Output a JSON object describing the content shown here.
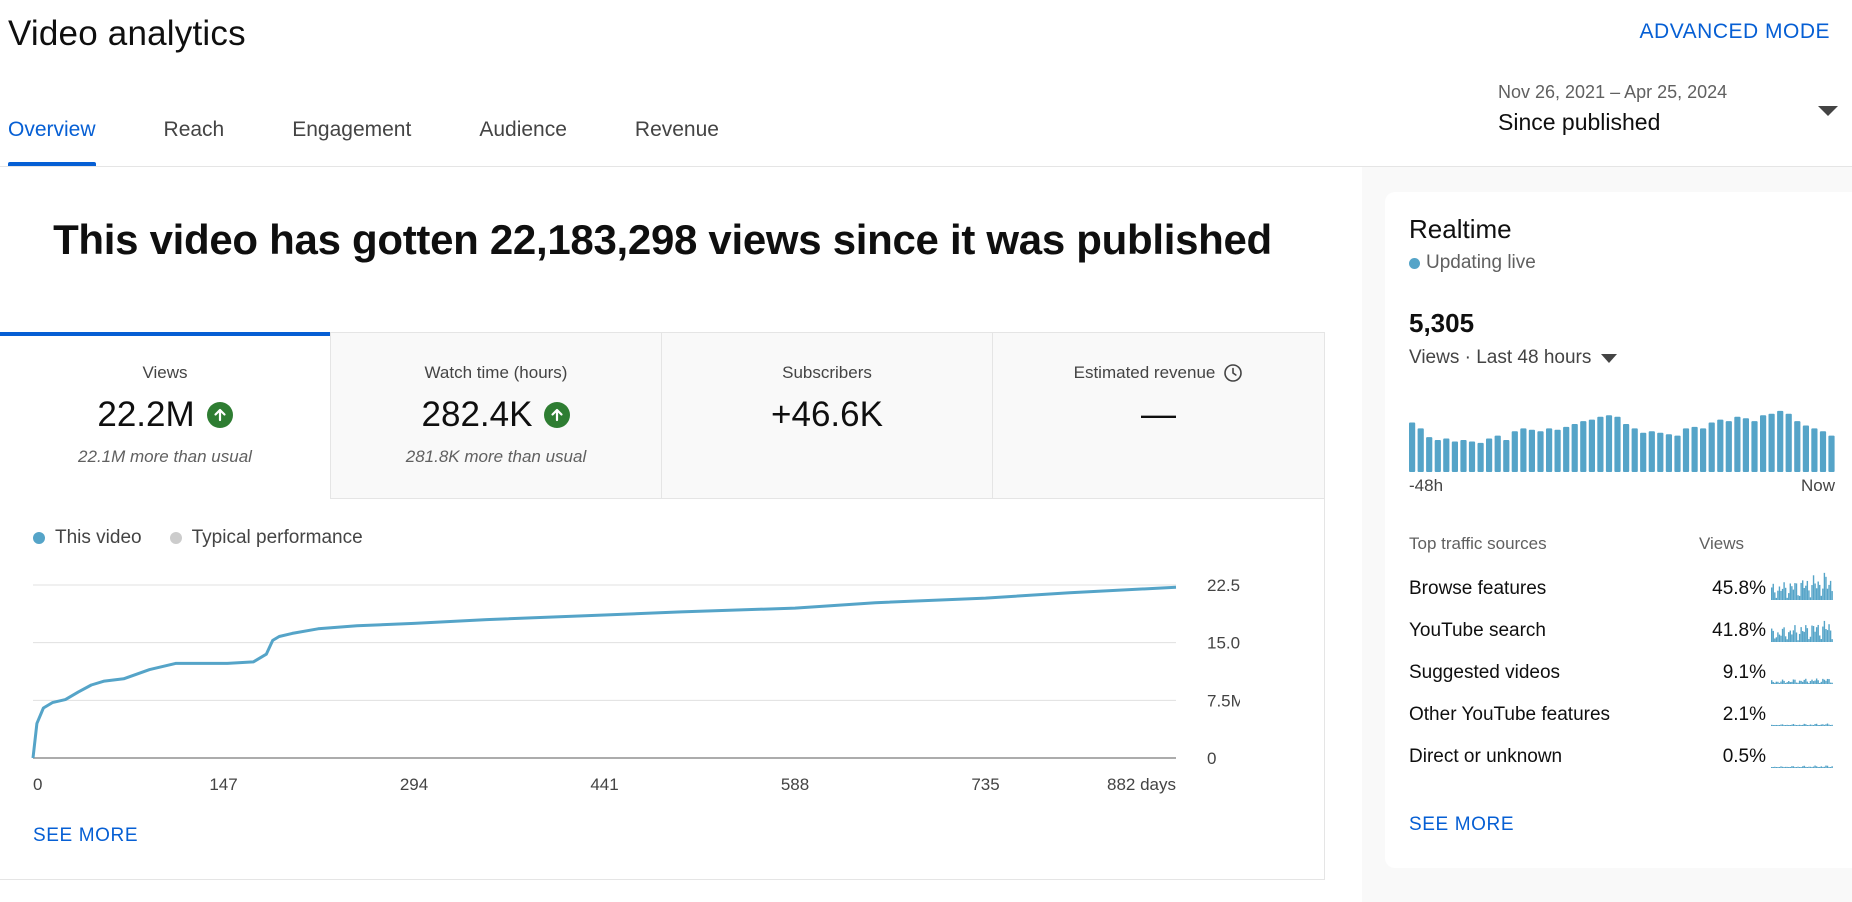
{
  "header": {
    "title": "Video analytics",
    "advanced_mode": "ADVANCED MODE"
  },
  "tabs": [
    {
      "label": "Overview",
      "active": true
    },
    {
      "label": "Reach",
      "active": false
    },
    {
      "label": "Engagement",
      "active": false
    },
    {
      "label": "Audience",
      "active": false
    },
    {
      "label": "Revenue",
      "active": false
    }
  ],
  "date_range": {
    "range": "Nov 26, 2021 – Apr 25, 2024",
    "label": "Since published"
  },
  "headline": "This video has gotten 22,183,298 views since it was published",
  "metrics": [
    {
      "label": "Views",
      "value": "22.2M",
      "sub": "22.1M more than usual",
      "trend": "up"
    },
    {
      "label": "Watch time (hours)",
      "value": "282.4K",
      "sub": "281.8K more than usual",
      "trend": "up"
    },
    {
      "label": "Subscribers",
      "value": "+46.6K",
      "sub": ""
    },
    {
      "label": "Estimated revenue",
      "value": "—",
      "sub": "",
      "icon": "clock-icon"
    }
  ],
  "legend": {
    "this_video": "This video",
    "typical": "Typical performance"
  },
  "colors": {
    "accent": "#065fd4",
    "series": "#55a4c8",
    "typical": "#cccccc",
    "up": "#2e7d32"
  },
  "chart_data": {
    "type": "line",
    "series": [
      {
        "name": "This video",
        "x": [
          0,
          3,
          8,
          15,
          25,
          35,
          45,
          55,
          70,
          90,
          110,
          130,
          150,
          170,
          180,
          185,
          190,
          200,
          220,
          250,
          294,
          350,
          441,
          500,
          588,
          650,
          735,
          800,
          882
        ],
        "y": [
          0,
          4.5,
          6.5,
          7.2,
          7.6,
          8.6,
          9.5,
          10.0,
          10.3,
          11.5,
          12.3,
          12.3,
          12.3,
          12.5,
          13.5,
          15.3,
          15.8,
          16.2,
          16.8,
          17.2,
          17.5,
          18.0,
          18.6,
          19.0,
          19.5,
          20.2,
          20.8,
          21.5,
          22.2
        ]
      }
    ],
    "x_ticks": [
      "0",
      "147",
      "294",
      "441",
      "588",
      "735",
      "882 days"
    ],
    "y_ticks": [
      "0",
      "7.5M",
      "15.0M",
      "22.5M"
    ],
    "xlim": [
      0,
      882
    ],
    "ylim": [
      0,
      22.5
    ],
    "grid": true
  },
  "main_see_more": "SEE MORE",
  "realtime": {
    "title": "Realtime",
    "live_label": "Updating live",
    "count": "5,305",
    "period": "Views · Last 48 hours",
    "axis_left": "-48h",
    "axis_right": "Now",
    "bars": [
      34,
      30,
      24,
      22,
      23,
      21,
      22,
      21,
      20,
      23,
      25,
      22,
      28,
      30,
      29,
      28,
      30,
      29,
      31,
      33,
      35,
      36,
      38,
      39,
      38,
      33,
      30,
      27,
      28,
      27,
      26,
      25,
      30,
      31,
      30,
      34,
      36,
      35,
      38,
      37,
      35,
      39,
      40,
      42,
      40,
      35,
      32,
      30,
      28,
      25
    ],
    "traffic_header": "Top traffic sources",
    "views_header": "Views",
    "sources": [
      {
        "name": "Browse features",
        "pct": "45.8%"
      },
      {
        "name": "YouTube search",
        "pct": "41.8%"
      },
      {
        "name": "Suggested videos",
        "pct": "9.1%"
      },
      {
        "name": "Other YouTube features",
        "pct": "2.1%"
      },
      {
        "name": "Direct or unknown",
        "pct": "0.5%"
      }
    ],
    "see_more": "SEE MORE"
  }
}
